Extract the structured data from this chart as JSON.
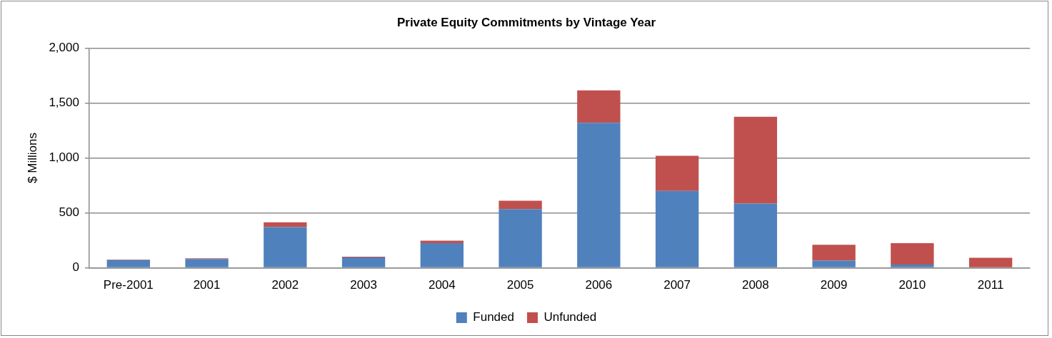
{
  "chart_data": {
    "type": "bar",
    "title": "Private Equity Commitments by Vintage Year",
    "ylabel": "$ Millions",
    "categories": [
      "Pre-2001",
      "2001",
      "2002",
      "2003",
      "2004",
      "2005",
      "2006",
      "2007",
      "2008",
      "2009",
      "2010",
      "2011"
    ],
    "series": [
      {
        "name": "Funded",
        "color": "#4f81bd",
        "values": [
          70,
          80,
          370,
          95,
          225,
          535,
          1320,
          700,
          585,
          65,
          30,
          null
        ]
      },
      {
        "name": "Unfunded",
        "color": "#c0504d",
        "values": [
          5,
          7,
          45,
          7,
          22,
          75,
          295,
          320,
          790,
          145,
          195,
          92
        ]
      }
    ],
    "stacked": true,
    "ylim": [
      0,
      2000
    ],
    "yticks": [
      {
        "value": 0,
        "label": "0"
      },
      {
        "value": 500,
        "label": "500"
      },
      {
        "value": 1000,
        "label": "1,000"
      },
      {
        "value": 1500,
        "label": "1,500"
      },
      {
        "value": 2000,
        "label": "2,000"
      }
    ],
    "grid": "y",
    "legend": "bottom"
  }
}
